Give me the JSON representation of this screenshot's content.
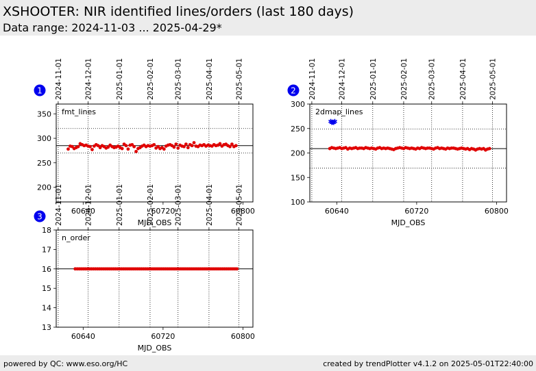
{
  "header": {
    "title": "XSHOOTER: NIR identified lines/orders (last 180 days)",
    "subtitle": "Data range: 2024-11-03 ... 2025-04-29*"
  },
  "footer": {
    "left": "powered by QC: www.eso.org/HC",
    "right": "created by trendPlotter v4.1.2 on 2025-05-01T22:40:00"
  },
  "colors": {
    "points": "#e00000",
    "outlier": "#0000ee",
    "badge": "#0000ee"
  },
  "chart_data": [
    {
      "type": "scatter",
      "badge": "1",
      "label": "fmt_lines",
      "xlabel": "MJD_OBS",
      "xlim": [
        60613,
        60810
      ],
      "ylim": [
        170,
        370
      ],
      "xticks": [
        60640,
        60720,
        60800
      ],
      "yticks": [
        200,
        250,
        300,
        350
      ],
      "date_ticks": [
        {
          "label": "2024-11-01",
          "mjd": 60615
        },
        {
          "label": "2024-12-01",
          "mjd": 60645
        },
        {
          "label": "2025-01-01",
          "mjd": 60676
        },
        {
          "label": "2025-02-01",
          "mjd": 60707
        },
        {
          "label": "2025-03-01",
          "mjd": 60735
        },
        {
          "label": "2025-04-01",
          "mjd": 60766
        },
        {
          "label": "2025-05-01",
          "mjd": 60796
        }
      ],
      "mean": 285,
      "limits": [
        270,
        320
      ],
      "grid": true,
      "series": [
        {
          "color": "red",
          "x": [
            60625,
            60627,
            60629,
            60631,
            60633,
            60635,
            60637,
            60639,
            60641,
            60643,
            60645,
            60647,
            60649,
            60651,
            60653,
            60655,
            60657,
            60659,
            60661,
            60663,
            60665,
            60667,
            60669,
            60671,
            60673,
            60675,
            60677,
            60679,
            60681,
            60683,
            60685,
            60687,
            60689,
            60691,
            60693,
            60695,
            60697,
            60699,
            60701,
            60703,
            60705,
            60707,
            60709,
            60711,
            60713,
            60715,
            60717,
            60719,
            60721,
            60723,
            60725,
            60727,
            60729,
            60731,
            60733,
            60735,
            60737,
            60739,
            60741,
            60743,
            60745,
            60747,
            60749,
            60751,
            60753,
            60755,
            60757,
            60759,
            60761,
            60763,
            60765,
            60767,
            60769,
            60771,
            60773,
            60775,
            60777,
            60779,
            60781,
            60783,
            60785,
            60787,
            60789,
            60791,
            60793
          ],
          "y": [
            278,
            284,
            283,
            279,
            281,
            283,
            289,
            287,
            285,
            286,
            284,
            283,
            277,
            284,
            287,
            285,
            281,
            285,
            283,
            280,
            282,
            286,
            283,
            281,
            282,
            284,
            281,
            279,
            288,
            285,
            278,
            286,
            287,
            283,
            273,
            279,
            281,
            284,
            286,
            283,
            285,
            284,
            285,
            287,
            280,
            283,
            279,
            281,
            278,
            284,
            286,
            287,
            285,
            282,
            288,
            280,
            286,
            284,
            283,
            288,
            281,
            287,
            285,
            291,
            284,
            283,
            286,
            285,
            287,
            284,
            286,
            285,
            284,
            287,
            285,
            286,
            289,
            284,
            287,
            288,
            285,
            283,
            288,
            283,
            285
          ]
        }
      ]
    },
    {
      "type": "scatter",
      "badge": "2",
      "label": "2dmap_lines",
      "xlabel": "MJD_OBS",
      "xlim": [
        60613,
        60810
      ],
      "ylim": [
        100,
        300
      ],
      "xticks": [
        60640,
        60720,
        60800
      ],
      "yticks": [
        100,
        150,
        200,
        250,
        300
      ],
      "date_ticks": [
        {
          "label": "2024-11-01",
          "mjd": 60615
        },
        {
          "label": "2024-12-01",
          "mjd": 60645
        },
        {
          "label": "2025-01-01",
          "mjd": 60676
        },
        {
          "label": "2025-02-01",
          "mjd": 60707
        },
        {
          "label": "2025-03-01",
          "mjd": 60735
        },
        {
          "label": "2025-04-01",
          "mjd": 60766
        },
        {
          "label": "2025-05-01",
          "mjd": 60796
        }
      ],
      "mean": 209,
      "limits": [
        169,
        249
      ],
      "grid": true,
      "series": [
        {
          "color": "red",
          "x": [
            60633,
            60635,
            60637,
            60639,
            60641,
            60643,
            60645,
            60647,
            60649,
            60651,
            60653,
            60655,
            60657,
            60659,
            60661,
            60663,
            60665,
            60667,
            60669,
            60671,
            60673,
            60675,
            60677,
            60679,
            60681,
            60683,
            60685,
            60687,
            60689,
            60691,
            60693,
            60695,
            60697,
            60699,
            60701,
            60703,
            60705,
            60707,
            60709,
            60711,
            60713,
            60715,
            60717,
            60719,
            60721,
            60723,
            60725,
            60727,
            60729,
            60731,
            60733,
            60735,
            60737,
            60739,
            60741,
            60743,
            60745,
            60747,
            60749,
            60751,
            60753,
            60755,
            60757,
            60759,
            60761,
            60763,
            60765,
            60767,
            60769,
            60771,
            60773,
            60775,
            60777,
            60779,
            60781,
            60783,
            60785,
            60787,
            60789,
            60791,
            60793
          ],
          "y": [
            209,
            211,
            210,
            209,
            210,
            211,
            209,
            210,
            211,
            208,
            210,
            209,
            210,
            211,
            209,
            210,
            210,
            209,
            211,
            210,
            209,
            210,
            209,
            208,
            210,
            211,
            209,
            210,
            209,
            210,
            209,
            208,
            207,
            209,
            210,
            211,
            210,
            209,
            211,
            210,
            209,
            210,
            209,
            208,
            210,
            209,
            211,
            210,
            209,
            210,
            210,
            209,
            208,
            210,
            211,
            209,
            210,
            209,
            208,
            210,
            209,
            210,
            210,
            209,
            208,
            209,
            210,
            209,
            208,
            209,
            207,
            209,
            208,
            206,
            208,
            209,
            208,
            209,
            206,
            208,
            209
          ]
        },
        {
          "color": "blue",
          "x": [
            60634,
            60635,
            60636,
            60637,
            60638
          ],
          "y": [
            264,
            262,
            263,
            262,
            264
          ]
        }
      ]
    },
    {
      "type": "scatter",
      "badge": "3",
      "label": "n_order",
      "xlabel": "MJD_OBS",
      "xlim": [
        60613,
        60810
      ],
      "ylim": [
        13,
        18
      ],
      "xticks": [
        60640,
        60720,
        60800
      ],
      "yticks": [
        13,
        14,
        15,
        16,
        17,
        18
      ],
      "date_ticks": [
        {
          "label": "2024-11-01",
          "mjd": 60615
        },
        {
          "label": "2024-12-01",
          "mjd": 60645
        },
        {
          "label": "2025-01-01",
          "mjd": 60676
        },
        {
          "label": "2025-02-01",
          "mjd": 60707
        },
        {
          "label": "2025-03-01",
          "mjd": 60735
        },
        {
          "label": "2025-04-01",
          "mjd": 60766
        },
        {
          "label": "2025-05-01",
          "mjd": 60796
        }
      ],
      "mean": 16,
      "limits": [],
      "grid": true,
      "series": [
        {
          "color": "red",
          "x": [
            60632,
            60634,
            60636,
            60638,
            60640,
            60642,
            60644,
            60646,
            60648,
            60650,
            60652,
            60654,
            60656,
            60658,
            60660,
            60662,
            60664,
            60666,
            60668,
            60670,
            60672,
            60674,
            60676,
            60678,
            60680,
            60682,
            60684,
            60686,
            60688,
            60690,
            60692,
            60694,
            60696,
            60698,
            60700,
            60702,
            60704,
            60706,
            60708,
            60710,
            60712,
            60714,
            60716,
            60718,
            60720,
            60722,
            60724,
            60726,
            60728,
            60730,
            60732,
            60734,
            60736,
            60738,
            60740,
            60742,
            60744,
            60746,
            60748,
            60750,
            60752,
            60754,
            60756,
            60758,
            60760,
            60762,
            60764,
            60766,
            60768,
            60770,
            60772,
            60774,
            60776,
            60778,
            60780,
            60782,
            60784,
            60786,
            60788,
            60790,
            60792,
            60794
          ],
          "y": [
            16,
            16,
            16,
            16,
            16,
            16,
            16,
            16,
            16,
            16,
            16,
            16,
            16,
            16,
            16,
            16,
            16,
            16,
            16,
            16,
            16,
            16,
            16,
            16,
            16,
            16,
            16,
            16,
            16,
            16,
            16,
            16,
            16,
            16,
            16,
            16,
            16,
            16,
            16,
            16,
            16,
            16,
            16,
            16,
            16,
            16,
            16,
            16,
            16,
            16,
            16,
            16,
            16,
            16,
            16,
            16,
            16,
            16,
            16,
            16,
            16,
            16,
            16,
            16,
            16,
            16,
            16,
            16,
            16,
            16,
            16,
            16,
            16,
            16,
            16,
            16,
            16,
            16,
            16,
            16,
            16,
            16
          ]
        }
      ]
    }
  ]
}
